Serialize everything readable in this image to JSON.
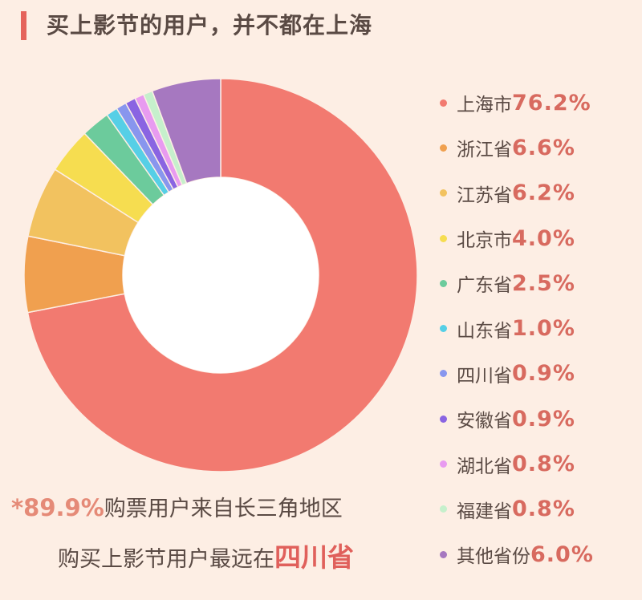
{
  "title": "买上影节的用户，并不都在上海",
  "chart_data": {
    "type": "pie",
    "title": "买上影节的用户，并不都在上海",
    "unit": "%",
    "categories": [
      "上海市",
      "浙江省",
      "江苏省",
      "北京市",
      "广东省",
      "山东省",
      "四川省",
      "安徽省",
      "湖北省",
      "福建省",
      "其他省份"
    ],
    "values": [
      76.2,
      6.6,
      6.2,
      4.0,
      2.5,
      1.0,
      0.9,
      0.9,
      0.8,
      0.8,
      6.0
    ],
    "value_labels": [
      "76.2%",
      "6.6%",
      "6.2%",
      "4.0%",
      "2.5%",
      "1.0%",
      "0.9%",
      "0.9%",
      "0.8%",
      "0.8%",
      "6.0%"
    ],
    "colors": [
      "#f27a70",
      "#f0a04f",
      "#f2c25f",
      "#f6dd50",
      "#6ccb9c",
      "#56cfe6",
      "#8896ee",
      "#8a64e2",
      "#e89bf0",
      "#c6f0cc",
      "#a678c0"
    ],
    "legend_position": "right"
  },
  "notes": {
    "line1_prefix": "*89.9%",
    "line1_text": "购票用户来自长三角地区",
    "line2_text": "购买上影节用户最远在",
    "line2_highlight": "四川省"
  }
}
